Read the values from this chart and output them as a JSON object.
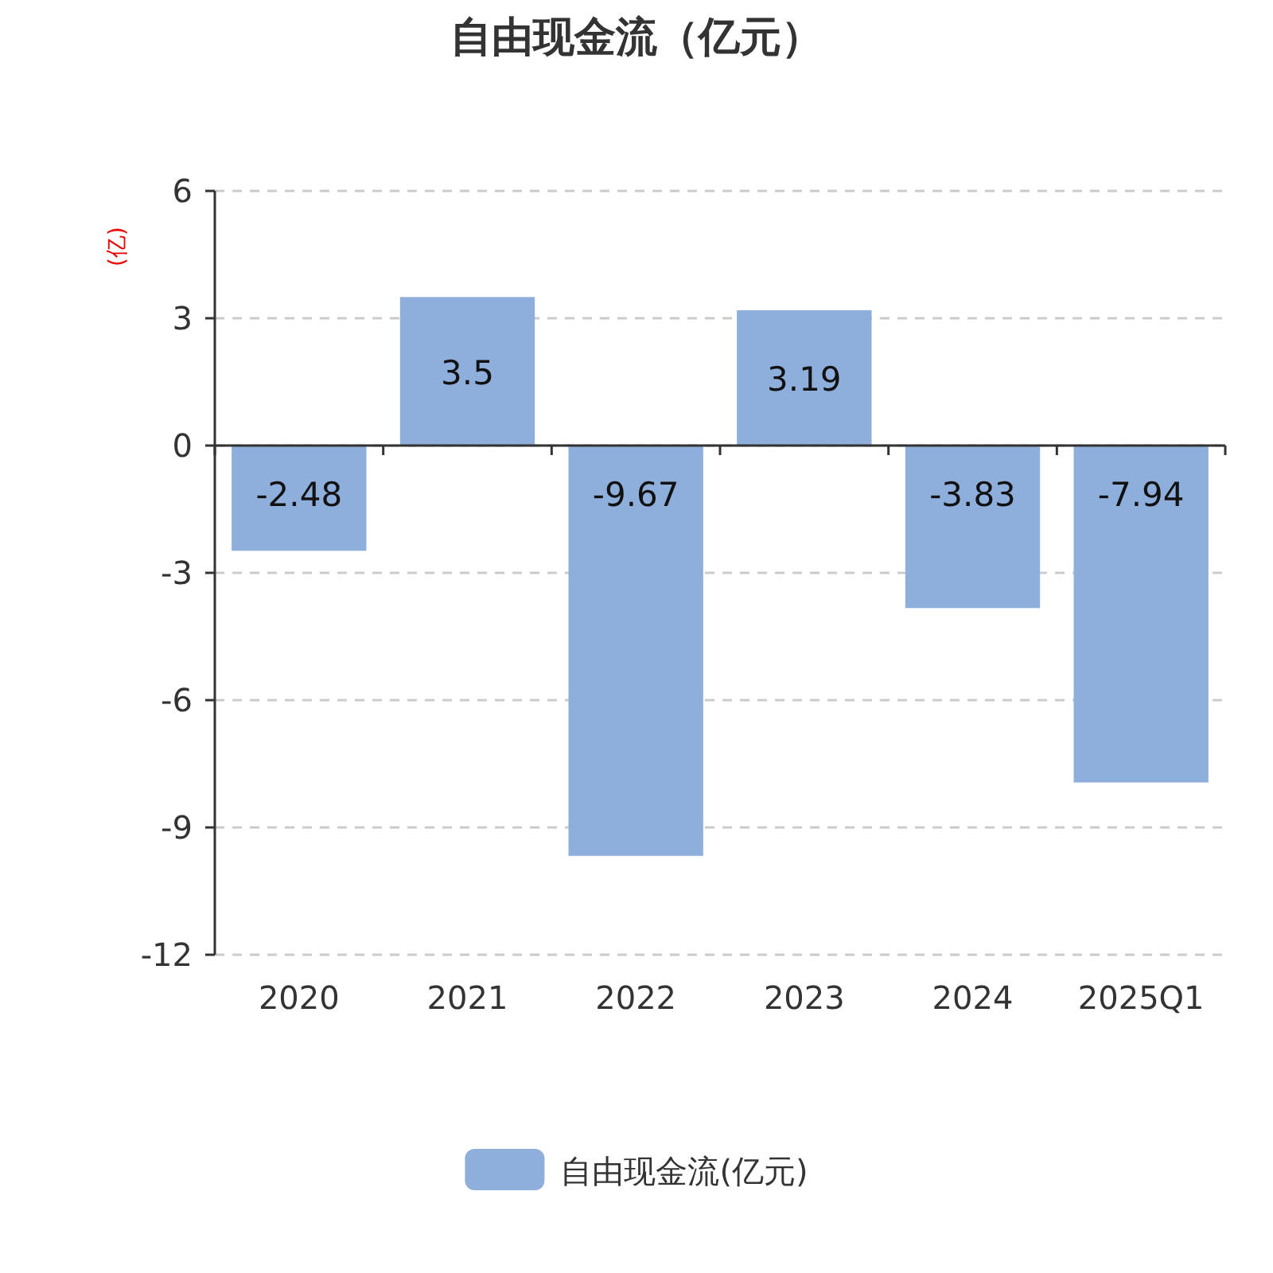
{
  "chart_data": {
    "type": "bar",
    "title": "自由现金流（亿元）",
    "ylabel": "(亿)",
    "categories": [
      "2020",
      "2021",
      "2022",
      "2023",
      "2024",
      "2025Q1"
    ],
    "series": [
      {
        "name": "自由现金流(亿元)",
        "color": "#8eaedb",
        "values": [
          -2.48,
          3.5,
          -9.67,
          3.19,
          -3.83,
          -7.94
        ]
      }
    ],
    "ylim": [
      -12,
      6
    ],
    "yticks": [
      -12,
      -9,
      -6,
      -3,
      0,
      3,
      6
    ],
    "grid": "y",
    "legend": "bottom",
    "data_labels": true
  }
}
